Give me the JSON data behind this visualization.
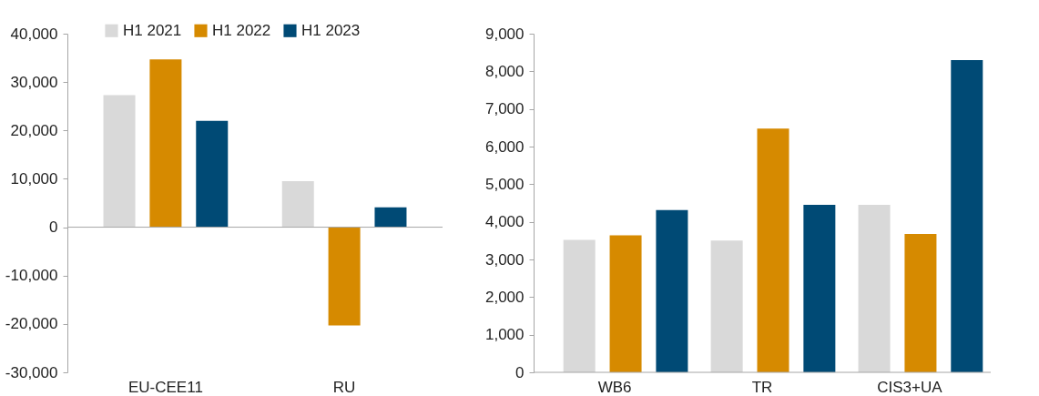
{
  "chart_data": [
    {
      "type": "bar",
      "categories": [
        "EU-CEE11",
        "RU"
      ],
      "series": [
        {
          "name": "H1 2021",
          "color": "#d9d9d9",
          "values": [
            27300,
            9500
          ]
        },
        {
          "name": "H1 2022",
          "color": "#d68a00",
          "values": [
            34700,
            -20300
          ]
        },
        {
          "name": "H1 2023",
          "color": "#004a75",
          "values": [
            22000,
            4100
          ]
        }
      ],
      "ylim": [
        -30000,
        40000
      ],
      "yticks": [
        {
          "value": -30000,
          "label": "-30,000"
        },
        {
          "value": -20000,
          "label": "-20,000"
        },
        {
          "value": -10000,
          "label": "-10,000"
        },
        0,
        {
          "value": 10000,
          "label": "10,000"
        },
        {
          "value": 20000,
          "label": "20,000"
        },
        {
          "value": 30000,
          "label": "30,000"
        },
        {
          "value": 40000,
          "label": "40,000"
        }
      ],
      "legend": "top"
    },
    {
      "type": "bar",
      "categories": [
        "WB6",
        "TR",
        "CIS3+UA"
      ],
      "series": [
        {
          "name": "H1 2021",
          "color": "#d9d9d9",
          "values": [
            3520,
            3500,
            4450
          ]
        },
        {
          "name": "H1 2022",
          "color": "#d68a00",
          "values": [
            3640,
            6480,
            3680
          ]
        },
        {
          "name": "H1 2023",
          "color": "#004a75",
          "values": [
            4310,
            4450,
            8300
          ]
        }
      ],
      "ylim": [
        0,
        9000
      ],
      "yticks": [
        0,
        {
          "value": 1000,
          "label": "1,000"
        },
        {
          "value": 2000,
          "label": "2,000"
        },
        {
          "value": 3000,
          "label": "3,000"
        },
        {
          "value": 4000,
          "label": "4,000"
        },
        {
          "value": 5000,
          "label": "5,000"
        },
        {
          "value": 6000,
          "label": "6,000"
        },
        {
          "value": 7000,
          "label": "7,000"
        },
        {
          "value": 8000,
          "label": "8,000"
        },
        {
          "value": 9000,
          "label": "9,000"
        }
      ],
      "legend": false
    }
  ]
}
